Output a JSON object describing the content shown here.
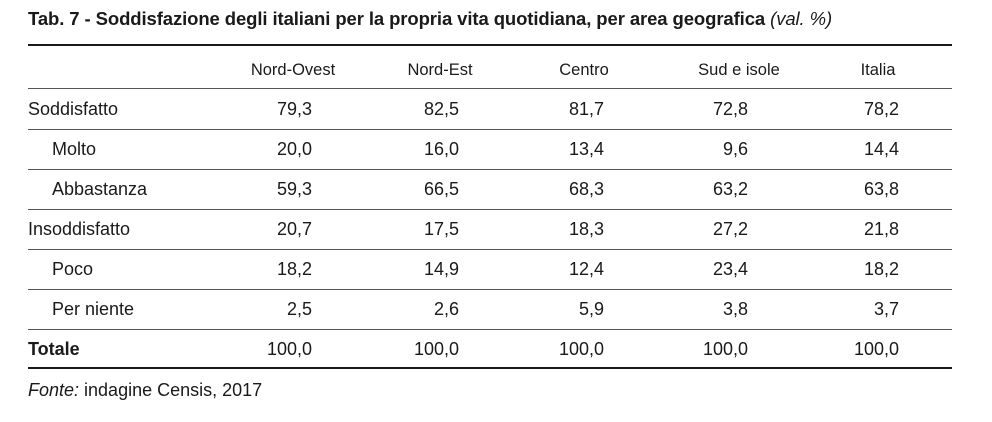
{
  "table": {
    "title": "Tab. 7 - Soddisfazione degli italiani per la propria vita quotidiana, per area geografica",
    "subtitle": "(val. %)",
    "columns": [
      "Nord-Ovest",
      "Nord-Est",
      "Centro",
      "Sud e isole",
      "Italia"
    ],
    "rows": [
      {
        "label": "Soddisfatto",
        "values": [
          "79,3",
          "82,5",
          "81,7",
          "72,8",
          "78,2"
        ]
      },
      {
        "label": "Molto",
        "values": [
          "20,0",
          "16,0",
          "13,4",
          "9,6",
          "14,4"
        ]
      },
      {
        "label": "Abbastanza",
        "values": [
          "59,3",
          "66,5",
          "68,3",
          "63,2",
          "63,8"
        ]
      },
      {
        "label": "Insoddisfatto",
        "values": [
          "20,7",
          "17,5",
          "18,3",
          "27,2",
          "21,8"
        ]
      },
      {
        "label": "Poco",
        "values": [
          "18,2",
          "14,9",
          "12,4",
          "23,4",
          "18,2"
        ]
      },
      {
        "label": "Per niente",
        "values": [
          "2,5",
          "2,6",
          "5,9",
          "3,8",
          "3,7"
        ]
      },
      {
        "label": "Totale",
        "values": [
          "100,0",
          "100,0",
          "100,0",
          "100,0",
          "100,0"
        ]
      }
    ],
    "source_label": "Fonte:",
    "source_text": " indagine Censis, 2017"
  }
}
